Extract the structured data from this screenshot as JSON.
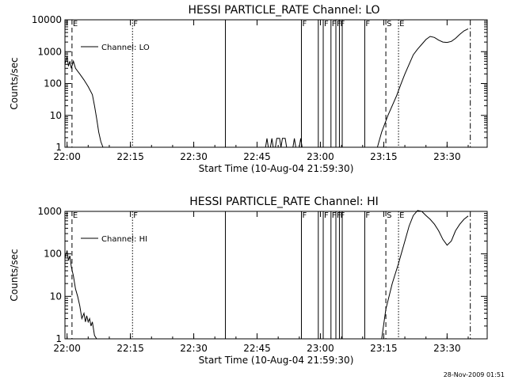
{
  "footer_stamp": "28-Nov-2009 01:51",
  "chart_data": [
    {
      "type": "line",
      "title": "HESSI PARTICLE_RATE Channel: LO",
      "xlabel": "Start Time (10-Aug-04 21:59:30)",
      "ylabel": "Counts/sec",
      "y_scale": "log",
      "ylim": [
        1,
        10000
      ],
      "xlim": [
        "21:59:30",
        "23:39:30"
      ],
      "x_ticks": [
        "22:00",
        "22:15",
        "22:30",
        "22:45",
        "23:00",
        "23:15",
        "23:30"
      ],
      "y_ticks": [
        "1",
        "10",
        "100",
        "1000",
        "10000"
      ],
      "legend": {
        "position": "top-left",
        "entries": [
          "Channel: LO"
        ]
      },
      "grid": false,
      "series": [
        {
          "name": "Channel: LO",
          "points": [
            [
              "21:59:30",
              400
            ],
            [
              "22:00:00",
              700
            ],
            [
              "22:00:20",
              350
            ],
            [
              "22:00:40",
              500
            ],
            [
              "22:01:00",
              300
            ],
            [
              "22:01:30",
              500
            ],
            [
              "22:02:00",
              300
            ],
            [
              "22:03:00",
              200
            ],
            [
              "22:04:00",
              130
            ],
            [
              "22:05:00",
              80
            ],
            [
              "22:06:00",
              45
            ],
            [
              "22:06:30",
              20
            ],
            [
              "22:07:00",
              8
            ],
            [
              "22:07:30",
              3
            ],
            [
              "22:08:00",
              1.5
            ],
            [
              "22:08:30",
              1
            ]
          ]
        },
        {
          "name": "Channel: LO",
          "points": [
            [
              "22:47:00",
              1
            ],
            [
              "22:47:20",
              1.9
            ],
            [
              "22:47:40",
              1
            ],
            [
              "22:48:10",
              1
            ],
            [
              "22:48:30",
              1.9
            ],
            [
              "22:48:50",
              1
            ],
            [
              "22:49:20",
              1
            ],
            [
              "22:49:40",
              1.9
            ],
            [
              "22:50:20",
              1.9
            ],
            [
              "22:50:40",
              1
            ],
            [
              "22:51:00",
              1.9
            ],
            [
              "22:51:40",
              1.9
            ],
            [
              "22:52:00",
              1
            ],
            [
              "22:53:30",
              1
            ],
            [
              "22:53:50",
              1.9
            ],
            [
              "22:54:10",
              1
            ],
            [
              "22:55:00",
              1
            ],
            [
              "22:55:20",
              1.9
            ],
            [
              "22:55:40",
              1
            ]
          ]
        },
        {
          "name": "Channel: LO",
          "points": [
            [
              "23:13:30",
              1
            ],
            [
              "23:14:30",
              3
            ],
            [
              "23:16:00",
              10
            ],
            [
              "23:18:00",
              40
            ],
            [
              "23:19:00",
              90
            ],
            [
              "23:20:00",
              200
            ],
            [
              "23:21:00",
              400
            ],
            [
              "23:22:00",
              800
            ],
            [
              "23:23:00",
              1200
            ],
            [
              "23:24:00",
              1700
            ],
            [
              "23:25:00",
              2400
            ],
            [
              "23:26:00",
              3000
            ],
            [
              "23:27:00",
              2800
            ],
            [
              "23:28:00",
              2300
            ],
            [
              "23:29:00",
              2000
            ],
            [
              "23:30:00",
              1950
            ],
            [
              "23:31:00",
              2100
            ],
            [
              "23:32:00",
              2600
            ],
            [
              "23:33:00",
              3500
            ],
            [
              "23:34:00",
              4500
            ],
            [
              "23:35:00",
              5200
            ]
          ]
        }
      ],
      "annotations": [
        {
          "time": "22:01:10",
          "style": "dashed",
          "label": "E"
        },
        {
          "time": "22:15:30",
          "style": "dotted",
          "label": "F"
        },
        {
          "time": "22:37:30",
          "style": "solid",
          "label": ""
        },
        {
          "time": "22:55:30",
          "style": "solid",
          "label": "F"
        },
        {
          "time": "22:59:30",
          "style": "solid",
          "label": ""
        },
        {
          "time": "23:00:40",
          "style": "solid",
          "label": "F"
        },
        {
          "time": "23:02:30",
          "style": "solid",
          "label": "F"
        },
        {
          "time": "23:03:40",
          "style": "solid",
          "label": "F"
        },
        {
          "time": "23:04:30",
          "style": "solid",
          "label": "F"
        },
        {
          "time": "23:05:10",
          "style": "solid",
          "label": ""
        },
        {
          "time": "23:10:30",
          "style": "solid",
          "label": "F"
        },
        {
          "time": "23:15:30",
          "style": "dashed",
          "label": "S"
        },
        {
          "time": "23:18:30",
          "style": "dotted",
          "label": "E"
        },
        {
          "time": "23:35:30",
          "style": "dashdot",
          "label": ""
        }
      ]
    },
    {
      "type": "line",
      "title": "HESSI PARTICLE_RATE Channel: HI",
      "xlabel": "Start Time (10-Aug-04 21:59:30)",
      "ylabel": "Counts/sec",
      "y_scale": "log",
      "ylim": [
        1,
        1000
      ],
      "xlim": [
        "21:59:30",
        "23:39:30"
      ],
      "x_ticks": [
        "22:00",
        "22:15",
        "22:30",
        "22:45",
        "23:00",
        "23:15",
        "23:30"
      ],
      "y_ticks": [
        "1",
        "10",
        "100",
        "1000"
      ],
      "legend": {
        "position": "top-left",
        "entries": [
          "Channel: HI"
        ]
      },
      "grid": false,
      "series": [
        {
          "name": "Channel: HI",
          "points": [
            [
              "21:59:30",
              80
            ],
            [
              "22:00:00",
              120
            ],
            [
              "22:00:20",
              70
            ],
            [
              "22:00:40",
              90
            ],
            [
              "22:01:00",
              50
            ],
            [
              "22:01:30",
              30
            ],
            [
              "22:02:00",
              15
            ],
            [
              "22:02:30",
              10
            ],
            [
              "22:03:00",
              6
            ],
            [
              "22:03:30",
              3
            ],
            [
              "22:04:00",
              4
            ],
            [
              "22:04:20",
              2.5
            ],
            [
              "22:04:40",
              3.5
            ],
            [
              "22:05:00",
              2.5
            ],
            [
              "22:05:20",
              3
            ],
            [
              "22:05:40",
              2
            ],
            [
              "22:06:00",
              2.5
            ],
            [
              "22:06:30",
              1.2
            ],
            [
              "22:07:00",
              1
            ]
          ]
        },
        {
          "name": "Channel: HI",
          "points": [
            [
              "23:14:30",
              1
            ],
            [
              "23:15:30",
              5
            ],
            [
              "23:17:00",
              20
            ],
            [
              "23:18:30",
              60
            ],
            [
              "23:20:00",
              200
            ],
            [
              "23:21:00",
              450
            ],
            [
              "23:22:00",
              800
            ],
            [
              "23:23:00",
              1050
            ],
            [
              "23:24:00",
              1000
            ],
            [
              "23:25:00",
              800
            ],
            [
              "23:26:00",
              650
            ],
            [
              "23:27:00",
              500
            ],
            [
              "23:28:00",
              350
            ],
            [
              "23:29:00",
              220
            ],
            [
              "23:30:00",
              160
            ],
            [
              "23:31:00",
              200
            ],
            [
              "23:32:00",
              350
            ],
            [
              "23:33:00",
              500
            ],
            [
              "23:34:00",
              650
            ],
            [
              "23:35:00",
              780
            ]
          ]
        }
      ],
      "annotations": [
        {
          "time": "22:01:10",
          "style": "dashed",
          "label": "E"
        },
        {
          "time": "22:15:30",
          "style": "dotted",
          "label": "F"
        },
        {
          "time": "22:37:30",
          "style": "solid",
          "label": ""
        },
        {
          "time": "22:55:30",
          "style": "solid",
          "label": "F"
        },
        {
          "time": "22:59:30",
          "style": "solid",
          "label": ""
        },
        {
          "time": "23:00:40",
          "style": "solid",
          "label": "F"
        },
        {
          "time": "23:02:30",
          "style": "solid",
          "label": "F"
        },
        {
          "time": "23:03:40",
          "style": "solid",
          "label": "F"
        },
        {
          "time": "23:04:30",
          "style": "solid",
          "label": "F"
        },
        {
          "time": "23:05:10",
          "style": "solid",
          "label": ""
        },
        {
          "time": "23:10:30",
          "style": "solid",
          "label": "F"
        },
        {
          "time": "23:15:30",
          "style": "dashed",
          "label": "S"
        },
        {
          "time": "23:18:30",
          "style": "dotted",
          "label": "E"
        },
        {
          "time": "23:35:30",
          "style": "dashdot",
          "label": ""
        }
      ]
    }
  ]
}
